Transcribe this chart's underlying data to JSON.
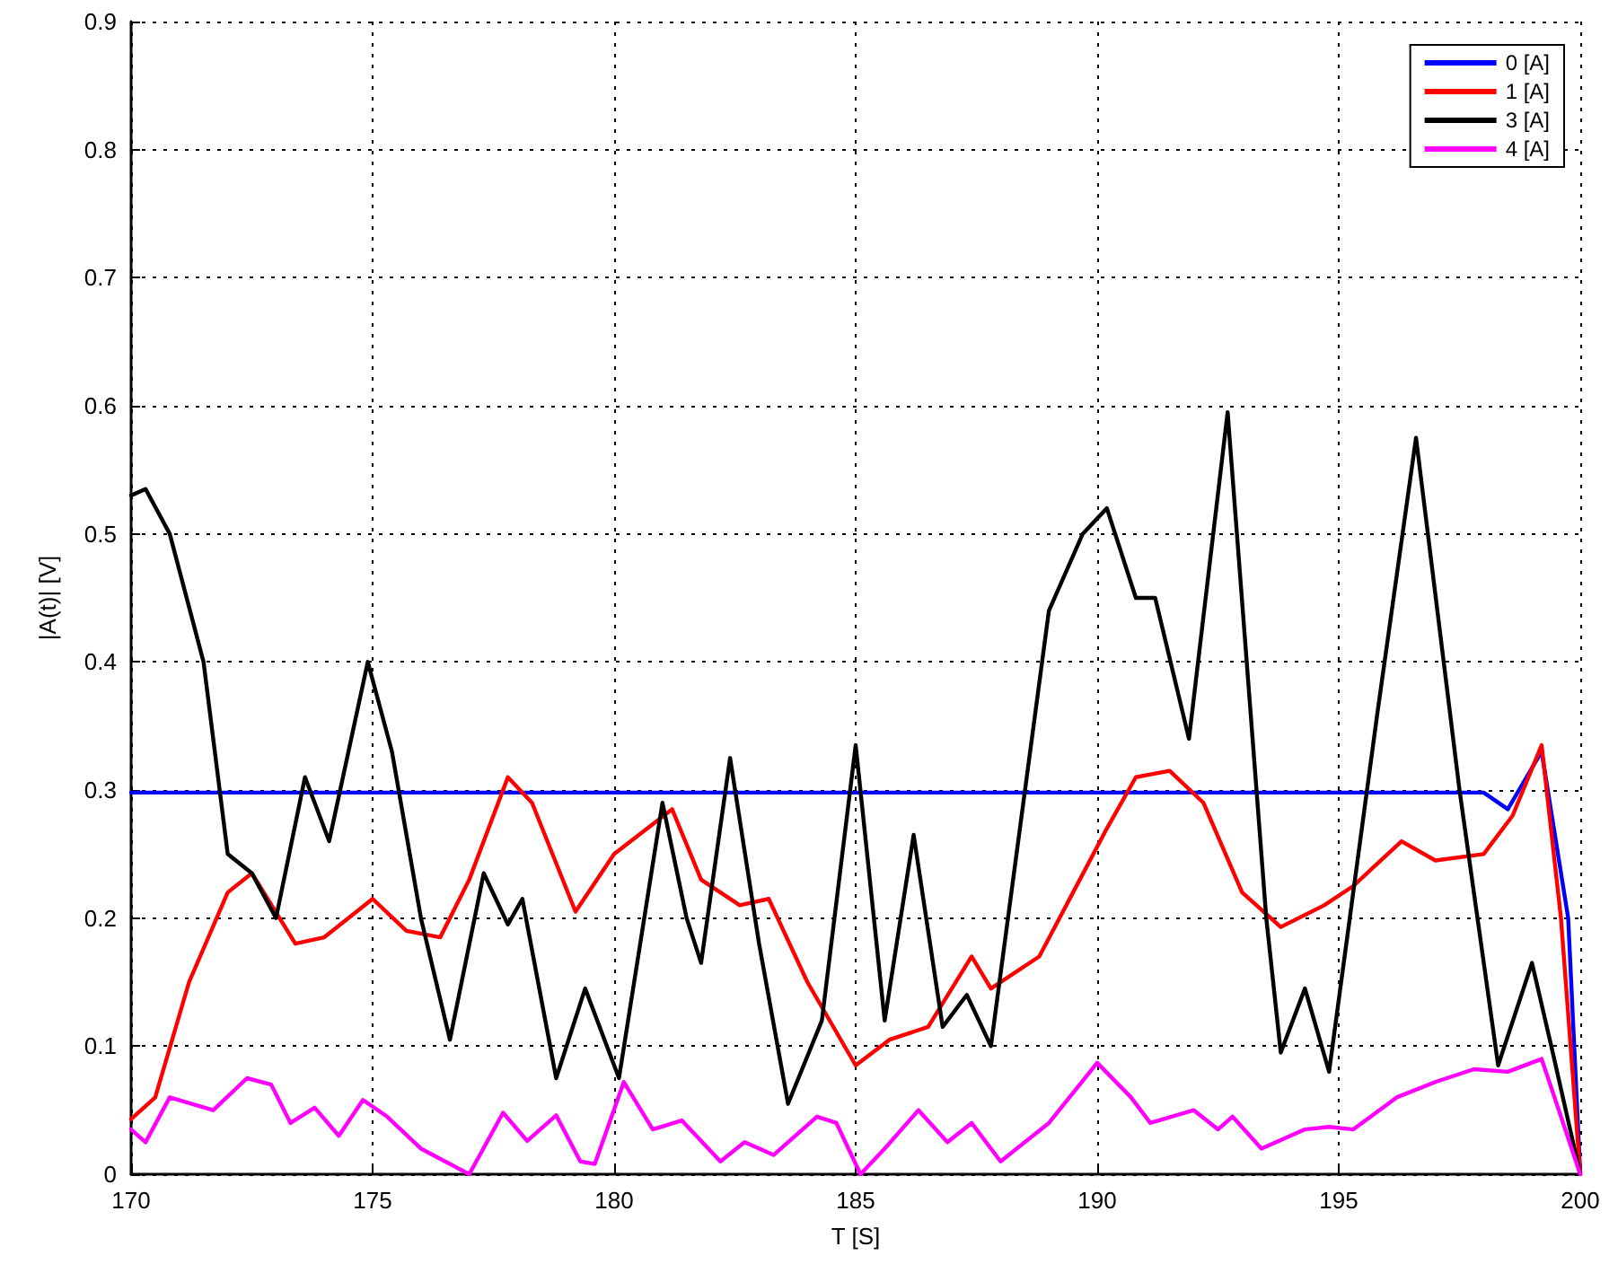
{
  "chart_data": {
    "type": "line",
    "xlabel": "T [S]",
    "ylabel": "|A(t)| [V]",
    "xlim": [
      170,
      200
    ],
    "xticks": [
      170,
      175,
      180,
      185,
      190,
      195,
      200
    ],
    "ylim": [
      0,
      0.9
    ],
    "yticks": [
      0,
      0.1,
      0.2,
      0.3,
      0.4,
      0.5,
      0.6,
      0.7,
      0.8,
      0.9
    ],
    "grid": true,
    "legend": "top right",
    "marker": "none",
    "series": [
      {
        "name": "0 [A]",
        "color": "#0000ff",
        "x": [
          170,
          198,
          198.5,
          199.2,
          199.75,
          200
        ],
        "values": [
          0.298,
          0.298,
          0.285,
          0.33,
          0.2,
          0
        ]
      },
      {
        "name": "1 [A]",
        "color": "#ff0000",
        "x": [
          170,
          170.5,
          171.2,
          172,
          172.5,
          173.4,
          174,
          175,
          175.7,
          176.4,
          177,
          177.8,
          178.3,
          179.2,
          180,
          181.2,
          181.8,
          182.6,
          183.2,
          184,
          185,
          185.7,
          186.5,
          187.4,
          187.8,
          188.8,
          189.5,
          190.2,
          190.8,
          191.5,
          192.2,
          193,
          193.8,
          194.7,
          195.3,
          196.3,
          197,
          198,
          198.6,
          199.2,
          199.6,
          200
        ],
        "values": [
          0.043,
          0.06,
          0.15,
          0.22,
          0.235,
          0.18,
          0.185,
          0.215,
          0.19,
          0.185,
          0.23,
          0.31,
          0.29,
          0.205,
          0.25,
          0.285,
          0.23,
          0.21,
          0.215,
          0.15,
          0.085,
          0.105,
          0.115,
          0.17,
          0.145,
          0.17,
          0.22,
          0.27,
          0.31,
          0.315,
          0.29,
          0.22,
          0.193,
          0.21,
          0.225,
          0.26,
          0.245,
          0.25,
          0.28,
          0.335,
          0.2,
          0
        ]
      },
      {
        "name": "3 [A]",
        "color": "#000000",
        "x": [
          170,
          170.3,
          170.8,
          171.5,
          172,
          172.5,
          173,
          173.6,
          174.1,
          174.9,
          175.4,
          176,
          176.6,
          177.3,
          177.8,
          178.1,
          178.8,
          179.4,
          180.1,
          181,
          181.5,
          181.8,
          182.4,
          183,
          183.6,
          184.3,
          185,
          185.6,
          186.2,
          186.8,
          187.3,
          187.8,
          189,
          189.7,
          190.2,
          190.8,
          191.2,
          191.9,
          192.7,
          193.5,
          193.8,
          194.3,
          194.8,
          195.8,
          196.6,
          197.5,
          198.3,
          199,
          199.4,
          200
        ],
        "values": [
          0.53,
          0.535,
          0.5,
          0.4,
          0.25,
          0.235,
          0.2,
          0.31,
          0.26,
          0.4,
          0.33,
          0.2,
          0.105,
          0.235,
          0.195,
          0.215,
          0.075,
          0.145,
          0.075,
          0.29,
          0.2,
          0.165,
          0.325,
          0.18,
          0.055,
          0.12,
          0.335,
          0.12,
          0.265,
          0.115,
          0.14,
          0.1,
          0.44,
          0.5,
          0.52,
          0.45,
          0.45,
          0.34,
          0.595,
          0.2,
          0.095,
          0.145,
          0.08,
          0.36,
          0.575,
          0.3,
          0.085,
          0.165,
          0.1,
          0
        ]
      },
      {
        "name": "4 [A]",
        "color": "#ff00ff",
        "x": [
          170,
          170.3,
          170.8,
          171.7,
          172.4,
          172.9,
          173.3,
          173.8,
          174.3,
          174.8,
          175.3,
          176,
          176.5,
          177,
          177.7,
          178.2,
          178.8,
          179.3,
          179.6,
          180.2,
          180.8,
          181.4,
          182.2,
          182.7,
          183.3,
          184.2,
          184.6,
          185.1,
          185.6,
          186.3,
          186.9,
          187.4,
          188,
          189,
          190,
          190.7,
          191.1,
          192,
          192.5,
          192.8,
          193.4,
          194.3,
          194.8,
          195.3,
          196.2,
          197,
          197.8,
          198.5,
          199.2,
          200
        ],
        "values": [
          0.035,
          0.025,
          0.06,
          0.05,
          0.075,
          0.07,
          0.04,
          0.052,
          0.03,
          0.058,
          0.045,
          0.02,
          0.01,
          0,
          0.048,
          0.026,
          0.046,
          0.01,
          0.008,
          0.072,
          0.035,
          0.042,
          0.01,
          0.025,
          0.015,
          0.045,
          0.04,
          0,
          0.02,
          0.05,
          0.025,
          0.04,
          0.01,
          0.04,
          0.087,
          0.06,
          0.04,
          0.05,
          0.035,
          0.045,
          0.02,
          0.035,
          0.037,
          0.035,
          0.06,
          0.072,
          0.082,
          0.08,
          0.09,
          0
        ]
      }
    ]
  }
}
